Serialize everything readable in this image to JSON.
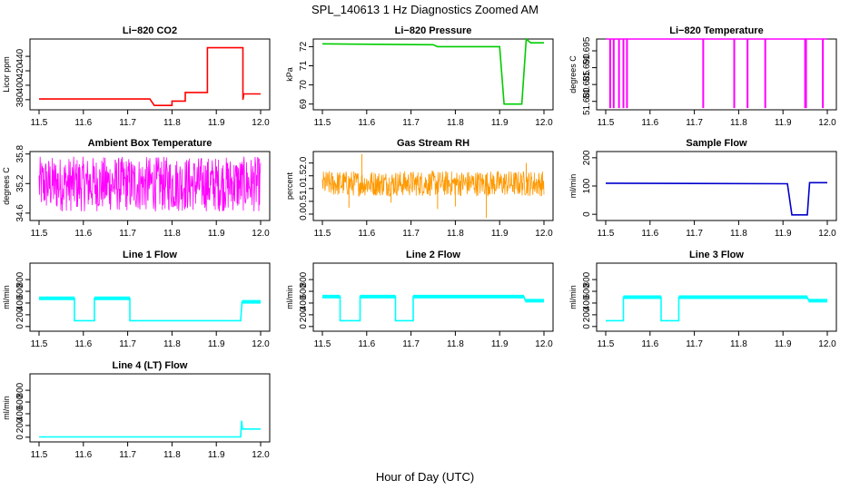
{
  "figure_title": "SPL_140613  1 Hz Diagnostics Zoomed AM",
  "x_axis_caption": "Hour of Day (UTC)",
  "chart_data": [
    {
      "type": "line",
      "title": "Li−820 CO2",
      "ylabel": "Licor ppm",
      "color": "#ff0000",
      "xlim": [
        11.5,
        12.0
      ],
      "ylim": [
        366,
        464
      ],
      "xticks": [
        "11.5",
        "11.6",
        "11.7",
        "11.8",
        "11.9",
        "12.0"
      ],
      "yticks": [
        "380",
        "400",
        "420",
        "440"
      ],
      "style": "step",
      "points": [
        [
          11.5,
          381
        ],
        [
          11.75,
          381
        ],
        [
          11.76,
          372
        ],
        [
          11.8,
          372
        ],
        [
          11.8,
          378
        ],
        [
          11.83,
          378
        ],
        [
          11.83,
          390
        ],
        [
          11.88,
          390
        ],
        [
          11.88,
          452
        ],
        [
          11.96,
          452
        ],
        [
          11.96,
          380
        ],
        [
          11.962,
          388
        ],
        [
          12.0,
          388
        ]
      ]
    },
    {
      "type": "line",
      "title": "Li−820 Pressure",
      "ylabel": "kPa",
      "color": "#00cc00",
      "xlim": [
        11.5,
        12.0
      ],
      "ylim": [
        68.7,
        72.4
      ],
      "xticks": [
        "11.5",
        "11.6",
        "11.7",
        "11.8",
        "11.9",
        "12.0"
      ],
      "yticks": [
        "69",
        "70",
        "71",
        "72"
      ],
      "style": "step",
      "points": [
        [
          11.5,
          72.15
        ],
        [
          11.75,
          72.1
        ],
        [
          11.76,
          72.0
        ],
        [
          11.9,
          72.0
        ],
        [
          11.91,
          69.0
        ],
        [
          11.95,
          69.0
        ],
        [
          11.96,
          72.4
        ],
        [
          11.97,
          72.2
        ],
        [
          12.0,
          72.2
        ]
      ]
    },
    {
      "type": "line",
      "title": "Li−820 Temperature",
      "ylabel": "degrees C",
      "color": "#ff00ff",
      "xlim": [
        11.5,
        12.0
      ],
      "ylim": [
        51.6775,
        51.6985
      ],
      "xticks": [
        "11.5",
        "11.6",
        "11.7",
        "11.8",
        "11.9",
        "12.0"
      ],
      "yticks": [
        "51.680",
        "51.685",
        "51.690",
        "51.695"
      ],
      "style": "spikes",
      "baseline": 51.6985,
      "spike_to": 51.678,
      "spikes": [
        11.51,
        11.518,
        11.53,
        11.54,
        11.548,
        11.72,
        11.79,
        11.82,
        11.86,
        11.95,
        11.952,
        11.99
      ]
    },
    {
      "type": "line",
      "title": "Ambient Box Temperature",
      "ylabel": "degrees C",
      "color": "#ff00ff",
      "xlim": [
        11.5,
        12.0
      ],
      "ylim": [
        34.45,
        35.85
      ],
      "xticks": [
        "11.5",
        "11.6",
        "11.7",
        "11.8",
        "11.9",
        "12.0"
      ],
      "yticks": [
        "34.6",
        "35.2",
        "35.8"
      ],
      "style": "noise",
      "noise_center": 35.1,
      "noise_low": 34.63,
      "noise_high": 35.75
    },
    {
      "type": "line",
      "title": "Gas Stream RH",
      "ylabel": "percent",
      "color": "#ff9900",
      "xlim": [
        11.5,
        12.0
      ],
      "ylim": [
        -0.25,
        2.45
      ],
      "xticks": [
        "11.5",
        "11.6",
        "11.7",
        "11.8",
        "11.9",
        "12.0"
      ],
      "yticks": [
        "0.0",
        "0.5",
        "1.0",
        "1.5",
        "2.0"
      ],
      "style": "noise",
      "noise_center": 1.25,
      "noise_low": 0.7,
      "noise_high": 1.7,
      "outliers": [
        [
          11.589,
          2.35
        ],
        [
          11.56,
          0.25
        ],
        [
          11.76,
          0.2
        ],
        [
          11.87,
          -0.15
        ],
        [
          11.96,
          2.0
        ],
        [
          11.655,
          0.45
        ],
        [
          11.8,
          0.3
        ]
      ]
    },
    {
      "type": "line",
      "title": "Sample Flow",
      "ylabel": "ml/min",
      "color": "#0000cc",
      "xlim": [
        11.5,
        12.0
      ],
      "ylim": [
        -22,
        222
      ],
      "xticks": [
        "11.5",
        "11.6",
        "11.7",
        "11.8",
        "11.9",
        "12.0"
      ],
      "yticks": [
        "0",
        "100",
        "200"
      ],
      "style": "step",
      "points": [
        [
          11.5,
          110
        ],
        [
          11.91,
          108
        ],
        [
          11.92,
          -2
        ],
        [
          11.955,
          -2
        ],
        [
          11.96,
          112
        ],
        [
          12.0,
          112
        ]
      ]
    },
    {
      "type": "line",
      "title": "Line 1 Flow",
      "ylabel": "ml/min",
      "color": "#00ffff",
      "xlim": [
        11.5,
        12.0
      ],
      "ylim": [
        -80,
        1080
      ],
      "xticks": [
        "11.5",
        "11.6",
        "11.7",
        "11.8",
        "11.9",
        "12.0"
      ],
      "yticks": [
        "0",
        "200",
        "400",
        "600",
        "800"
      ],
      "style": "step",
      "points": [
        [
          11.5,
          480
        ],
        [
          11.58,
          480
        ],
        [
          11.58,
          100
        ],
        [
          11.625,
          100
        ],
        [
          11.625,
          480
        ],
        [
          11.705,
          480
        ],
        [
          11.705,
          100
        ],
        [
          11.955,
          100
        ],
        [
          11.958,
          420
        ],
        [
          12.0,
          420
        ]
      ]
    },
    {
      "type": "line",
      "title": "Line 2 Flow",
      "ylabel": "ml/min",
      "color": "#00ffff",
      "xlim": [
        11.5,
        12.0
      ],
      "ylim": [
        -80,
        1080
      ],
      "xticks": [
        "11.5",
        "11.6",
        "11.7",
        "11.8",
        "11.9",
        "12.0"
      ],
      "yticks": [
        "0",
        "200",
        "400",
        "600",
        "800"
      ],
      "style": "step",
      "points": [
        [
          11.5,
          510
        ],
        [
          11.54,
          510
        ],
        [
          11.54,
          100
        ],
        [
          11.585,
          100
        ],
        [
          11.585,
          510
        ],
        [
          11.665,
          510
        ],
        [
          11.665,
          100
        ],
        [
          11.705,
          100
        ],
        [
          11.705,
          510
        ],
        [
          11.955,
          510
        ],
        [
          11.958,
          440
        ],
        [
          12.0,
          440
        ]
      ]
    },
    {
      "type": "line",
      "title": "Line 3 Flow",
      "ylabel": "ml/min",
      "color": "#00ffff",
      "xlim": [
        11.5,
        12.0
      ],
      "ylim": [
        -80,
        1080
      ],
      "xticks": [
        "11.5",
        "11.6",
        "11.7",
        "11.8",
        "11.9",
        "12.0"
      ],
      "yticks": [
        "0",
        "200",
        "400",
        "600",
        "800"
      ],
      "style": "step",
      "points": [
        [
          11.5,
          100
        ],
        [
          11.54,
          100
        ],
        [
          11.54,
          500
        ],
        [
          11.625,
          500
        ],
        [
          11.625,
          100
        ],
        [
          11.665,
          100
        ],
        [
          11.665,
          500
        ],
        [
          11.955,
          500
        ],
        [
          11.958,
          440
        ],
        [
          12.0,
          440
        ]
      ]
    },
    {
      "type": "line",
      "title": "Line 4 (LT) Flow",
      "ylabel": "ml/min",
      "color": "#00ffff",
      "xlim": [
        11.5,
        12.0
      ],
      "ylim": [
        -80,
        1080
      ],
      "xticks": [
        "11.5",
        "11.6",
        "11.7",
        "11.8",
        "11.9",
        "12.0"
      ],
      "yticks": [
        "0",
        "200",
        "400",
        "600",
        "800"
      ],
      "style": "step",
      "points": [
        [
          11.5,
          5
        ],
        [
          11.955,
          5
        ],
        [
          11.957,
          280
        ],
        [
          11.959,
          140
        ],
        [
          12.0,
          140
        ]
      ]
    }
  ]
}
